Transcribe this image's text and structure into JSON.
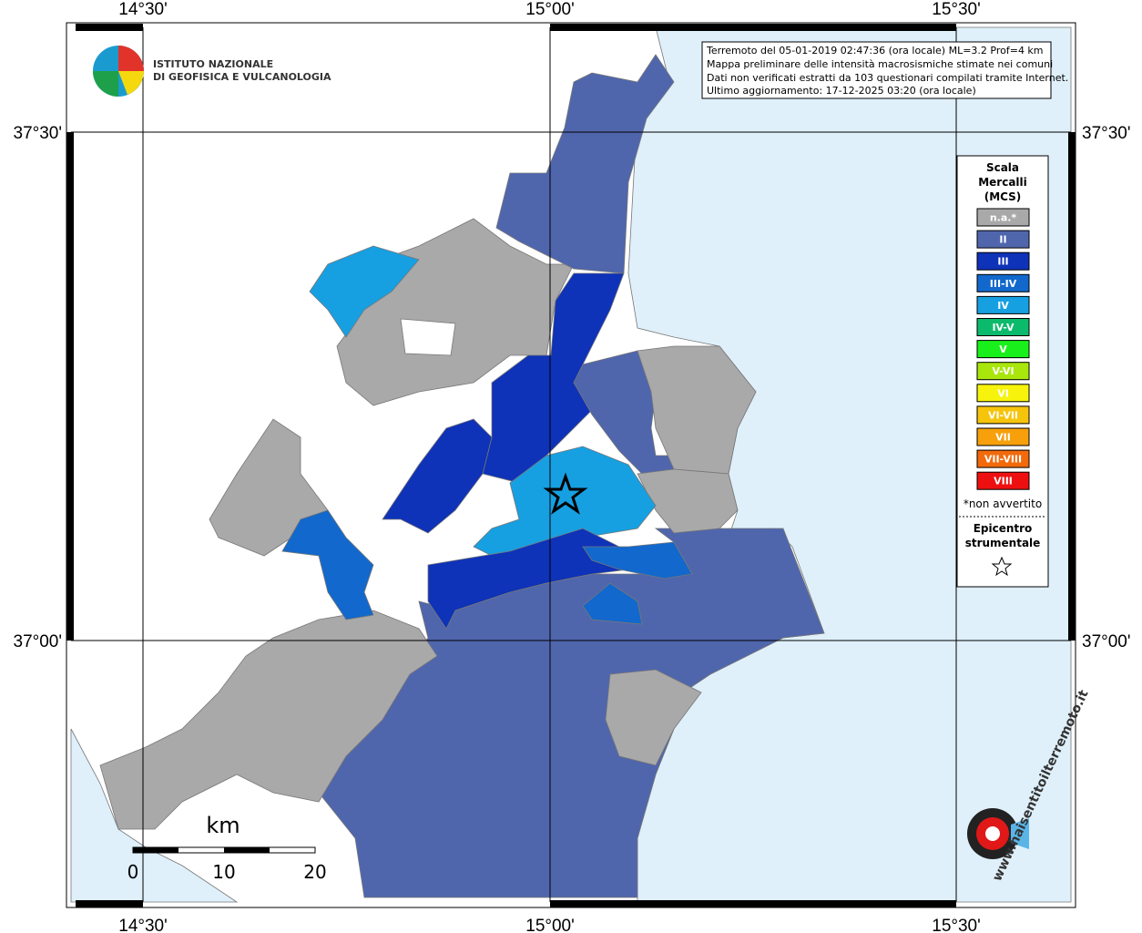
{
  "frame": {
    "top_labels": [
      "14°30'",
      "15°00'",
      "15°30'"
    ],
    "bottom_labels": [
      "14°30'",
      "15°00'",
      "15°30'"
    ],
    "left_labels": [
      "37°30'",
      "37°00'"
    ],
    "right_labels": [
      "37°30'",
      "37°00'"
    ]
  },
  "logo": {
    "lines": [
      "ISTITUTO NAZIONALE",
      "DI GEOFISICA E VULCANOLOGIA"
    ]
  },
  "info": {
    "lines": [
      "Terremoto del 05-01-2019 02:47:36 (ora locale) ML=3.2 Prof=4 km",
      "Mappa preliminare delle intensità macrosismiche stimate nei comuni",
      "Dati non verificati estratti da 103 questionari compilati tramite Internet.",
      "Ultimo aggiornamento: 17-12-2025 03:20 (ora locale)"
    ]
  },
  "legend": {
    "title": [
      "Scala",
      "Mercalli",
      "(MCS)"
    ],
    "levels": [
      {
        "label": "n.a.*",
        "color": "#a9a9a9"
      },
      {
        "label": "II",
        "color": "#4f66ad"
      },
      {
        "label": "III",
        "color": "#0e32b8"
      },
      {
        "label": "III-IV",
        "color": "#1268cc"
      },
      {
        "label": "IV",
        "color": "#16a0e2"
      },
      {
        "label": "IV-V",
        "color": "#0cba6c"
      },
      {
        "label": "V",
        "color": "#19f01b"
      },
      {
        "label": "V-VI",
        "color": "#a8e60c"
      },
      {
        "label": "VI",
        "color": "#f7f30c"
      },
      {
        "label": "VI-VII",
        "color": "#f7c40c"
      },
      {
        "label": "VII",
        "color": "#f7a00c"
      },
      {
        "label": "VII-VIII",
        "color": "#f26a0c"
      },
      {
        "label": "VIII",
        "color": "#ee1010"
      }
    ],
    "note": "*non avvertito",
    "epicenter": [
      "Epicentro",
      "strumentale"
    ]
  },
  "scale_bar": {
    "unit": "km",
    "labels": [
      "0",
      "10",
      "20"
    ]
  },
  "watermark": "www.haisentitoilterremoto.it"
}
